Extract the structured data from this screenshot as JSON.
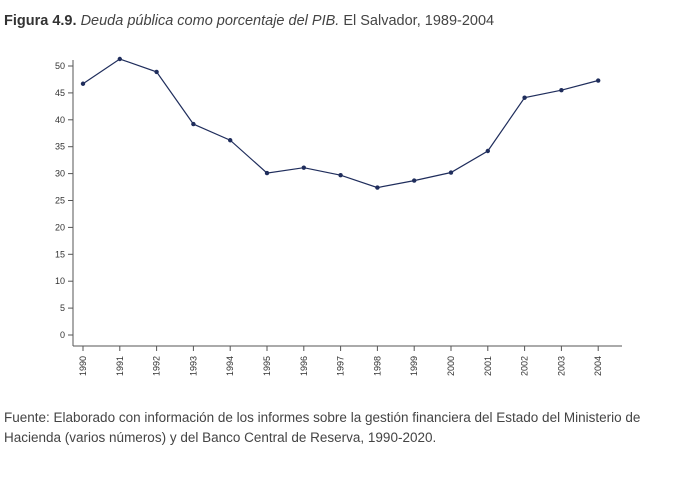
{
  "figure": {
    "label": "Figura 4.9.",
    "description": "Deuda pública como porcentaje del PIB.",
    "context": "El Salvador, 1989-2004"
  },
  "source_note": "Fuente: Elaborado con información de los informes sobre la gestión financiera del Estado del Ministerio de Hacienda (varios números) y del Banco Central de Reserva, 1990-2020.",
  "colors": {
    "line": "#1f2d5c",
    "marker": "#1f2d5c",
    "axis": "#555555"
  },
  "chart_data": {
    "type": "line",
    "title": "",
    "xlabel": "",
    "ylabel": "",
    "x": [
      "1990",
      "1991",
      "1992",
      "1993",
      "1994",
      "1995",
      "1996",
      "1997",
      "1998",
      "1999",
      "2000",
      "2001",
      "2002",
      "2003",
      "2004"
    ],
    "series": [
      {
        "values": [
          46.7,
          51.3,
          48.9,
          39.2,
          36.2,
          30.1,
          31.1,
          29.7,
          27.4,
          28.7,
          30.2,
          34.2,
          44.1,
          45.5,
          47.3
        ]
      }
    ],
    "ylim": [
      0,
      50
    ],
    "yticks": [
      "0",
      "5",
      "10",
      "15",
      "20",
      "25",
      "30",
      "35",
      "40",
      "45",
      "50"
    ],
    "grid": false,
    "legend": "none"
  }
}
